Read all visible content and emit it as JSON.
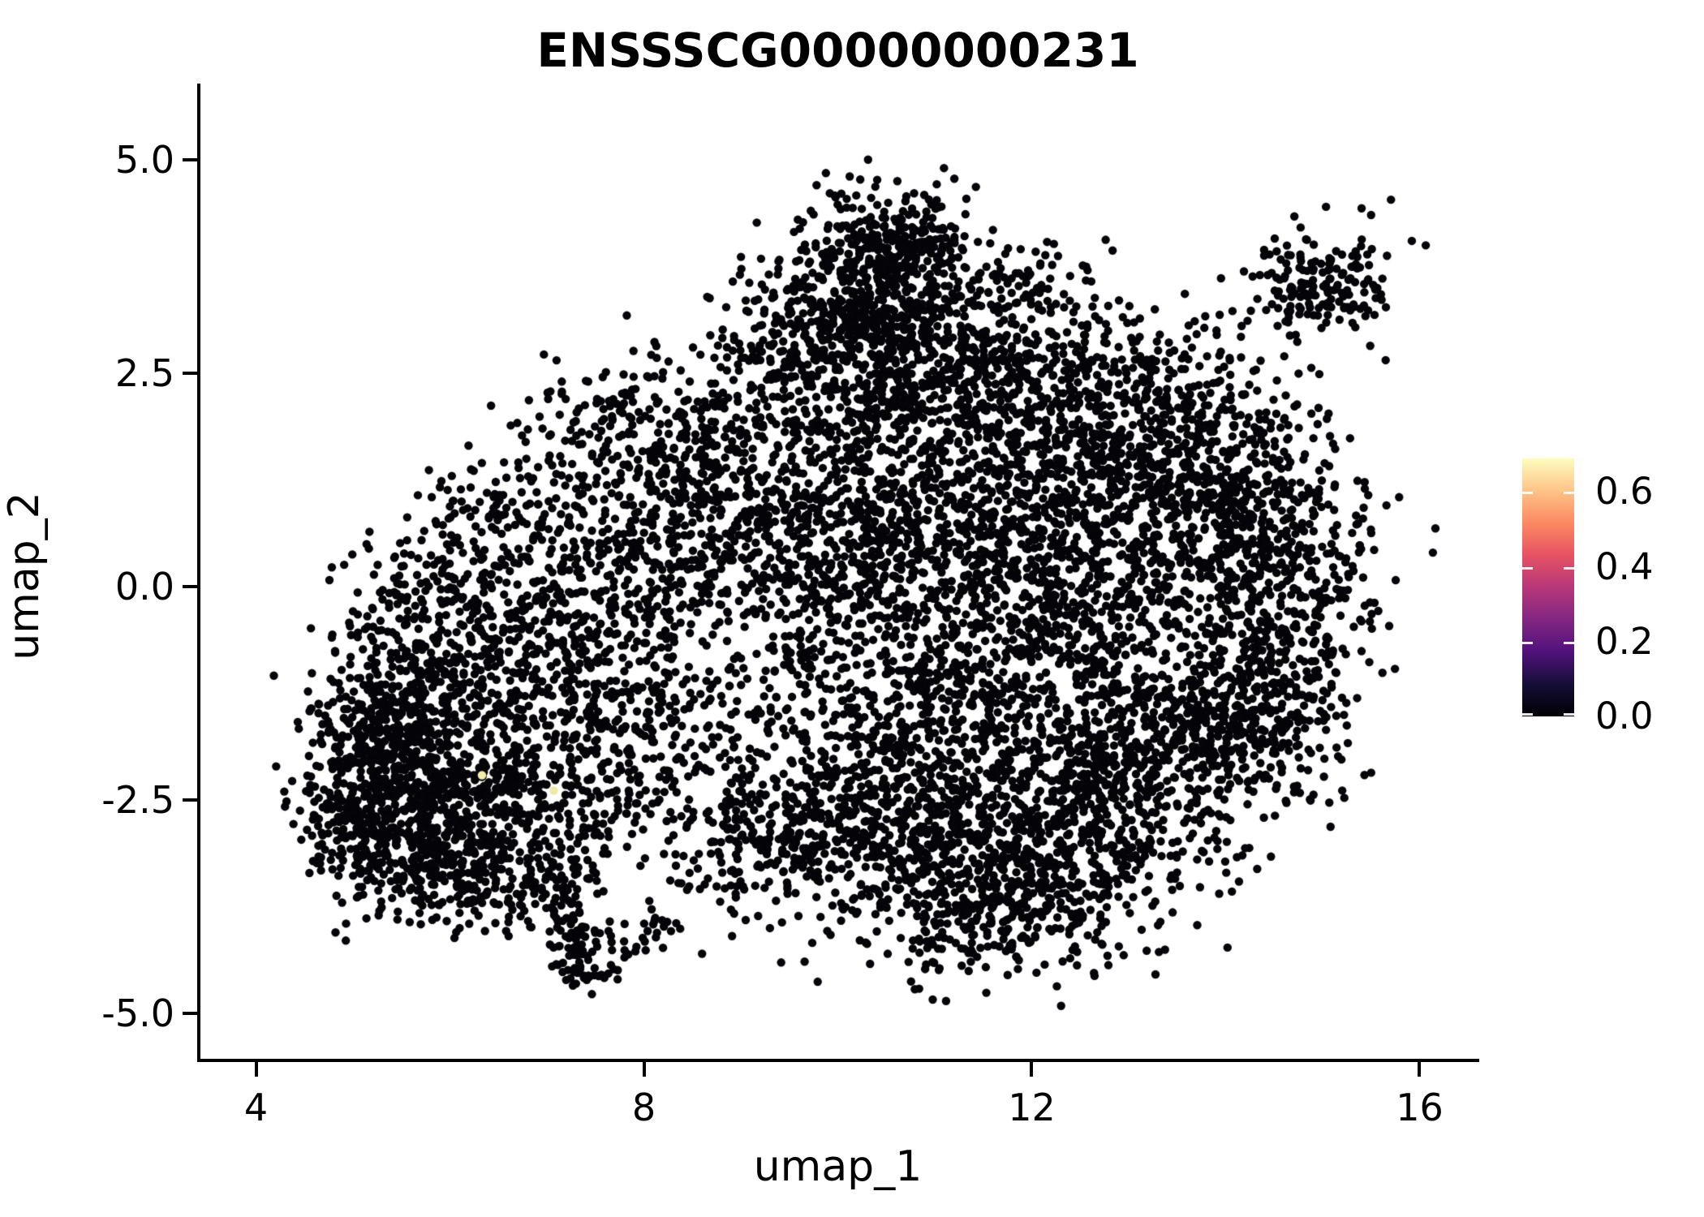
{
  "chart_data": {
    "type": "scatter",
    "title": "ENSSSCG00000000231",
    "xlabel": "umap_1",
    "ylabel": "umap_2",
    "x_ticks": [
      4,
      8,
      12,
      16
    ],
    "y_ticks": [
      "5.0",
      "2.5",
      "0.0",
      "-2.5",
      "-5.0"
    ],
    "y_tick_values": [
      5.0,
      2.5,
      0.0,
      -2.5,
      -5.0
    ],
    "x_range": [
      3.41,
      16.59
    ],
    "y_range": [
      -5.53,
      5.87
    ],
    "grid": false,
    "point_color": "#050408",
    "point_radius_px": 5.2,
    "n_points_approx": 10700,
    "colorbar": {
      "tick_labels": [
        "0.0",
        "0.2",
        "0.4",
        "0.6"
      ],
      "tick_values": [
        0.0,
        0.2,
        0.4,
        0.6
      ],
      "value_range": [
        0.0,
        0.69
      ],
      "colormap": "magma",
      "stops_bottom_to_top": [
        {
          "t": 0.0,
          "color": "#000004"
        },
        {
          "t": 0.125,
          "color": "#150e37"
        },
        {
          "t": 0.25,
          "color": "#51127c"
        },
        {
          "t": 0.375,
          "color": "#822681"
        },
        {
          "t": 0.5,
          "color": "#b73779"
        },
        {
          "t": 0.625,
          "color": "#e75263"
        },
        {
          "t": 0.75,
          "color": "#fc8961"
        },
        {
          "t": 0.875,
          "color": "#fec488"
        },
        {
          "t": 1.0,
          "color": "#fcfdbf"
        }
      ]
    },
    "clusters_xysxsyn": [
      [
        10.55,
        4.05,
        0.4,
        0.3,
        240
      ],
      [
        10.15,
        3.35,
        0.55,
        0.42,
        330
      ],
      [
        9.95,
        2.55,
        0.65,
        0.48,
        360
      ],
      [
        11.25,
        2.85,
        0.6,
        0.5,
        310
      ],
      [
        12.55,
        2.15,
        0.75,
        0.55,
        430
      ],
      [
        13.75,
        1.55,
        0.6,
        0.5,
        310
      ],
      [
        14.35,
        0.6,
        0.55,
        0.6,
        320
      ],
      [
        14.55,
        -0.55,
        0.5,
        0.7,
        290
      ],
      [
        14.35,
        -1.6,
        0.45,
        0.5,
        180
      ],
      [
        12.55,
        0.55,
        0.9,
        0.8,
        680
      ],
      [
        11.75,
        -0.9,
        0.9,
        0.8,
        640
      ],
      [
        10.8,
        1.2,
        0.7,
        0.7,
        430
      ],
      [
        9.9,
        0.25,
        0.8,
        0.7,
        410
      ],
      [
        13.35,
        -1.85,
        0.65,
        0.65,
        440
      ],
      [
        12.4,
        -2.9,
        0.75,
        0.65,
        500
      ],
      [
        11.15,
        -3.1,
        0.75,
        0.6,
        480
      ],
      [
        10.3,
        -2.0,
        0.8,
        0.75,
        420
      ],
      [
        11.55,
        -3.95,
        0.55,
        0.33,
        150
      ],
      [
        9.4,
        -3.0,
        0.6,
        0.5,
        240
      ],
      [
        8.75,
        1.55,
        0.65,
        0.55,
        260
      ],
      [
        8.25,
        0.4,
        0.75,
        0.65,
        310
      ],
      [
        7.0,
        -0.3,
        0.75,
        0.6,
        280
      ],
      [
        8.0,
        -1.55,
        0.8,
        0.7,
        330
      ],
      [
        6.0,
        -1.05,
        0.55,
        0.5,
        230
      ],
      [
        5.75,
        -2.2,
        0.6,
        0.55,
        360
      ],
      [
        5.3,
        -1.65,
        0.42,
        0.48,
        190
      ],
      [
        6.75,
        -2.6,
        0.7,
        0.58,
        380
      ],
      [
        5.55,
        -3.0,
        0.48,
        0.42,
        240
      ],
      [
        5.0,
        -2.55,
        0.3,
        0.55,
        140
      ],
      [
        6.4,
        -3.45,
        0.4,
        0.3,
        120
      ],
      [
        7.6,
        1.95,
        0.5,
        0.4,
        100
      ],
      [
        6.55,
        0.9,
        0.5,
        0.4,
        110
      ],
      [
        5.65,
        -0.1,
        0.45,
        0.4,
        110
      ],
      [
        11.95,
        3.55,
        0.45,
        0.3,
        55
      ],
      [
        7.18,
        -3.45,
        0.13,
        0.18,
        26
      ],
      [
        7.24,
        -3.85,
        0.12,
        0.2,
        30
      ],
      [
        7.3,
        -4.25,
        0.13,
        0.18,
        34
      ],
      [
        7.33,
        -4.52,
        0.17,
        0.1,
        26
      ],
      [
        7.8,
        -4.18,
        0.26,
        0.13,
        22
      ],
      [
        8.12,
        -4.02,
        0.14,
        0.1,
        12
      ],
      [
        15.05,
        3.6,
        0.4,
        0.3,
        150
      ],
      [
        14.55,
        3.3,
        0.38,
        0.28,
        36
      ]
    ],
    "extra_points": [
      [
        13.95,
        2.75
      ],
      [
        14.2,
        2.25
      ],
      [
        15.65,
        2.65
      ],
      [
        13.6,
        2.9
      ],
      [
        14.05,
        1.15
      ],
      [
        15.5,
        4.35
      ],
      [
        14.85,
        -2.15
      ],
      [
        4.82,
        -4.05
      ],
      [
        8.6,
        -4.3
      ],
      [
        9.3,
        -4.0
      ],
      [
        6.1,
        -4.0
      ],
      [
        12.9,
        3.35
      ]
    ],
    "highlight_points": [
      {
        "x": 6.33,
        "y": -2.21,
        "value": 0.65,
        "color": "#f2edaa"
      },
      {
        "x": 7.07,
        "y": -2.39,
        "value": 0.63,
        "color": "#f0e9a6"
      }
    ]
  }
}
